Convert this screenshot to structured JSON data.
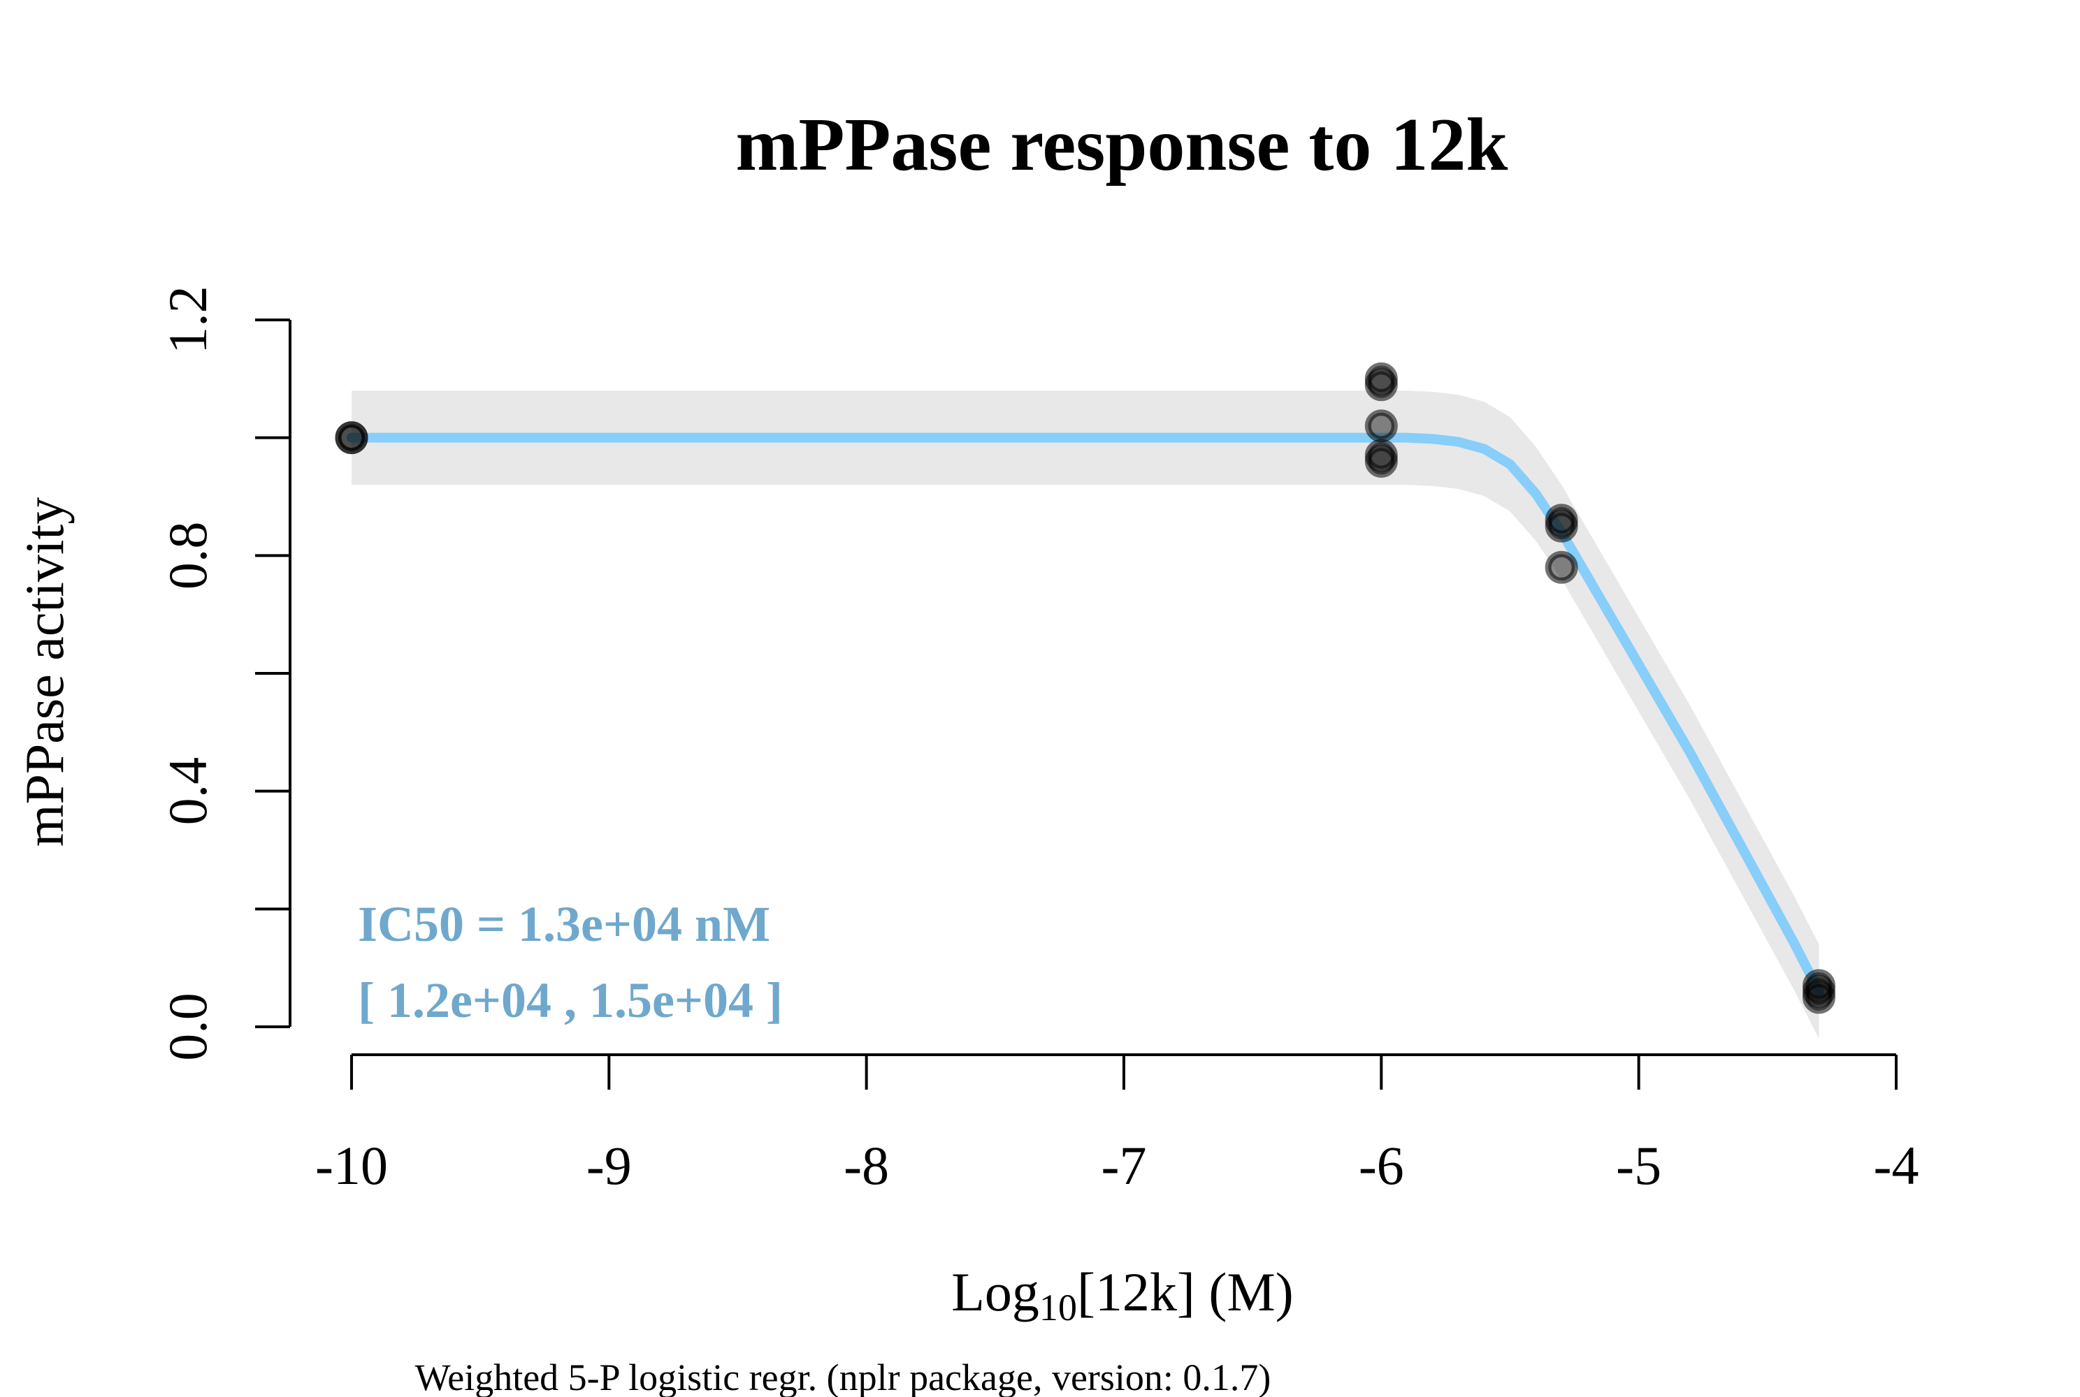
{
  "chart_data": {
    "type": "scatter",
    "title": "mPPase response to 12k",
    "xlabel_main": "Log",
    "xlabel_sub": "10",
    "xlabel_rest": "[12k] (M)",
    "ylabel": "mPPase activity",
    "caption": "Weighted 5-P logistic regr. (nplr package, version: 0.1.7)",
    "xlim": [
      -10,
      -4
    ],
    "ylim": [
      0.0,
      1.2
    ],
    "x_ticks": [
      -10,
      -9,
      -8,
      -7,
      -6,
      -5,
      -4
    ],
    "x_tick_labels": [
      "-10",
      "-9",
      "-8",
      "-7",
      "-6",
      "-5",
      "-4"
    ],
    "y_ticks": [
      0.0,
      0.2,
      0.4,
      0.6,
      0.8,
      1.0,
      1.2
    ],
    "y_tick_labels": [
      "0.0",
      "",
      "0.4",
      "",
      "0.8",
      "",
      "1.2"
    ],
    "points": [
      {
        "x": -10,
        "y": 1.0
      },
      {
        "x": -10,
        "y": 1.0
      },
      {
        "x": -6,
        "y": 1.1
      },
      {
        "x": -6,
        "y": 1.09
      },
      {
        "x": -6,
        "y": 1.02
      },
      {
        "x": -6,
        "y": 0.97
      },
      {
        "x": -6,
        "y": 0.96
      },
      {
        "x": -5.3,
        "y": 0.86
      },
      {
        "x": -5.3,
        "y": 0.85
      },
      {
        "x": -5.3,
        "y": 0.78
      },
      {
        "x": -4.3,
        "y": 0.07
      },
      {
        "x": -4.3,
        "y": 0.06
      },
      {
        "x": -4.3,
        "y": 0.05
      }
    ],
    "fit_curve": {
      "x": [
        -10,
        -9,
        -8,
        -7,
        -6,
        -5.9,
        -5.8,
        -5.7,
        -5.6,
        -5.5,
        -5.4,
        -5.3,
        -5.2,
        -5.1,
        -5.0,
        -4.9,
        -4.8,
        -4.7,
        -4.6,
        -4.5,
        -4.4,
        -4.3
      ],
      "y": [
        1.0,
        1.0,
        1.0,
        1.0,
        1.0,
        1.0,
        0.998,
        0.993,
        0.981,
        0.955,
        0.905,
        0.84,
        0.765,
        0.69,
        0.615,
        0.54,
        0.465,
        0.385,
        0.305,
        0.225,
        0.145,
        0.06
      ]
    },
    "confidence_band_halfwidth": 0.08,
    "curve_color": "#87CEFA",
    "band_color": "#E8E8E8",
    "point_color": "#000000",
    "annotation": {
      "line1": "IC50 = 1.3e+04 nM",
      "line2": "[ 1.2e+04 , 1.5e+04 ]",
      "color": "#6FA8CC"
    }
  }
}
